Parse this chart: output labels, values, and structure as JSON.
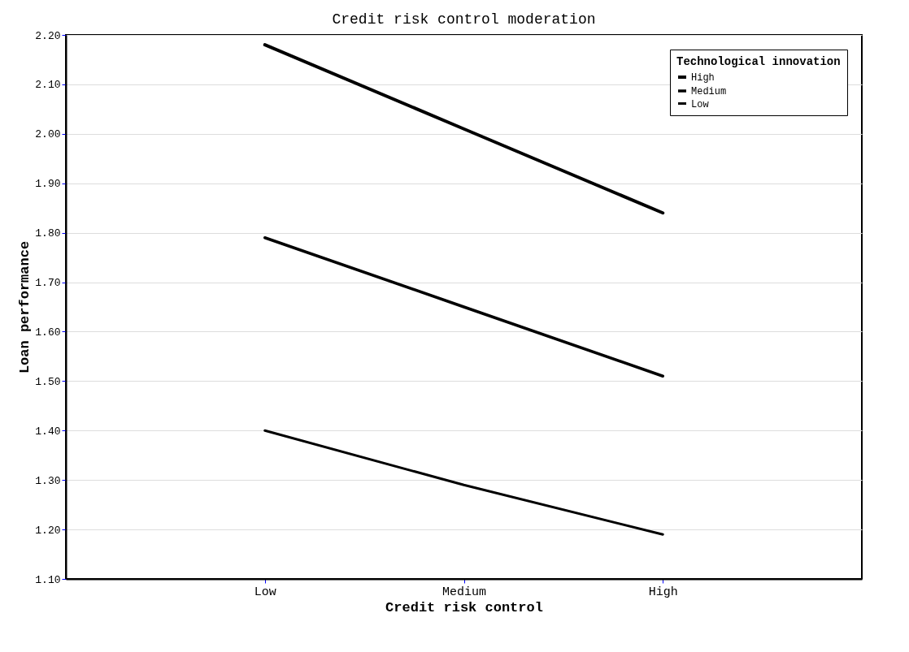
{
  "chart_data": {
    "type": "line",
    "title": "Credit risk control moderation",
    "xlabel": "Credit risk control",
    "ylabel": "Loan performance",
    "legend_title": "Technological innovation",
    "categories": [
      "Low",
      "Medium",
      "High"
    ],
    "series": [
      {
        "name": "High",
        "color": "#000000",
        "values": [
          2.18,
          2.01,
          1.84
        ]
      },
      {
        "name": "Medium",
        "color": "#000000",
        "values": [
          1.79,
          1.65,
          1.51
        ]
      },
      {
        "name": "Low",
        "color": "#000000",
        "values": [
          1.4,
          1.29,
          1.19
        ]
      }
    ],
    "ylim": [
      1.1,
      2.2
    ],
    "yticks": [
      {
        "value": 1.1,
        "label": "1.10"
      },
      {
        "value": 1.2,
        "label": "1.20"
      },
      {
        "value": 1.3,
        "label": "1.30"
      },
      {
        "value": 1.4,
        "label": "1.40"
      },
      {
        "value": 1.5,
        "label": "1.50"
      },
      {
        "value": 1.6,
        "label": "1.60"
      },
      {
        "value": 1.7,
        "label": "1.70"
      },
      {
        "value": 1.8,
        "label": "1.80"
      },
      {
        "value": 1.9,
        "label": "1.90"
      },
      {
        "value": 2.0,
        "label": "2.00"
      },
      {
        "value": 2.1,
        "label": "2.10"
      },
      {
        "value": 2.2,
        "label": "2.20"
      }
    ],
    "grid": "y",
    "legend": "top right",
    "marker": "none",
    "line_style": "solid"
  }
}
